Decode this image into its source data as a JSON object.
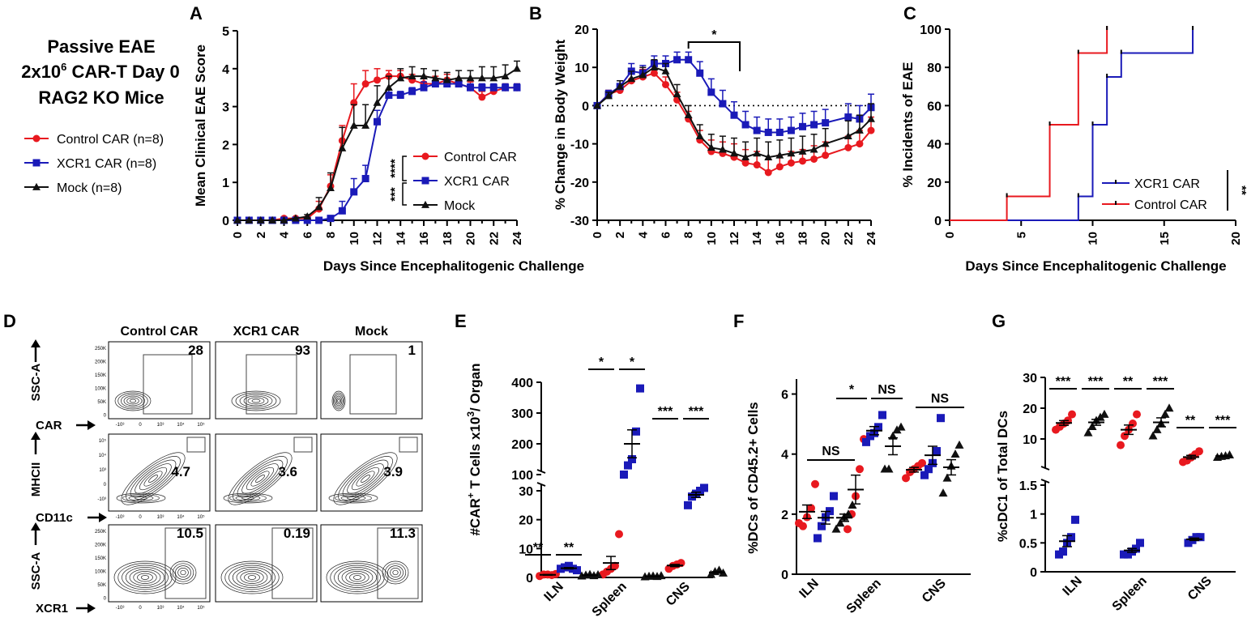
{
  "colors": {
    "control": "#e8191f",
    "xcr1": "#1a1ab8",
    "mock": "#111111"
  },
  "side_legend": {
    "title_line1": "Passive EAE",
    "title_line2_pre": "2x10",
    "title_line2_sup": "6",
    "title_line2_post": " CAR-T Day 0",
    "title_line3": "RAG2 KO Mice",
    "items": [
      "Control CAR (n=8)",
      "XCR1 CAR (n=8)",
      "Mock (n=8)"
    ]
  },
  "shared_xlabel": "Days Since Encephalitogenic Challenge",
  "chart_data": [
    {
      "panel": "A",
      "type": "line",
      "ylabel": "Mean Clinical EAE Score",
      "xlabel": "Days Since Encephalitogenic Challenge",
      "xlim": [
        0,
        24
      ],
      "ylim": [
        0,
        5
      ],
      "xticks": [
        0,
        2,
        4,
        6,
        8,
        10,
        12,
        14,
        16,
        18,
        20,
        22,
        24
      ],
      "yticks": [
        0,
        1,
        2,
        3,
        4,
        5
      ],
      "legend": [
        "Control CAR",
        "XCR1 CAR",
        "Mock"
      ],
      "significance": [
        "****",
        "***"
      ],
      "series": [
        {
          "name": "Control CAR",
          "x": [
            0,
            1,
            2,
            3,
            4,
            5,
            6,
            7,
            8,
            9,
            10,
            11,
            12,
            13,
            14,
            15,
            16,
            17,
            18,
            19,
            20,
            21,
            22,
            23,
            24
          ],
          "y": [
            0,
            0,
            0,
            0,
            0.05,
            0.05,
            0.05,
            0.3,
            0.9,
            2.1,
            3.1,
            3.6,
            3.7,
            3.8,
            3.8,
            3.7,
            3.6,
            3.6,
            3.7,
            3.6,
            3.5,
            3.25,
            3.4,
            3.5,
            3.5
          ],
          "err": [
            0,
            0,
            0,
            0,
            0,
            0,
            0,
            0.2,
            0.3,
            0.4,
            0.5,
            0.35,
            0.3,
            0.15,
            0.15,
            0.15,
            0.2,
            0.2,
            0.15,
            0.15,
            0.15,
            0.15,
            0.1,
            0.1,
            0.1
          ]
        },
        {
          "name": "XCR1 CAR",
          "x": [
            0,
            1,
            2,
            3,
            4,
            5,
            6,
            7,
            8,
            9,
            10,
            11,
            12,
            13,
            14,
            15,
            16,
            17,
            18,
            19,
            20,
            21,
            22,
            23,
            24
          ],
          "y": [
            0,
            0,
            0,
            0,
            0,
            0,
            0,
            0,
            0.05,
            0.25,
            0.75,
            1.1,
            2.6,
            3.3,
            3.3,
            3.4,
            3.5,
            3.6,
            3.6,
            3.6,
            3.5,
            3.5,
            3.5,
            3.5,
            3.5
          ],
          "err": [
            0,
            0,
            0,
            0,
            0,
            0,
            0,
            0,
            0.05,
            0.25,
            0.35,
            0.35,
            0.3,
            0.15,
            0.1,
            0.1,
            0.15,
            0.1,
            0.1,
            0.1,
            0.1,
            0.1,
            0.1,
            0.1,
            0.1
          ]
        },
        {
          "name": "Mock",
          "x": [
            0,
            1,
            2,
            3,
            4,
            5,
            6,
            7,
            8,
            9,
            10,
            11,
            12,
            13,
            14,
            15,
            16,
            17,
            18,
            19,
            20,
            21,
            22,
            23,
            24
          ],
          "y": [
            0,
            0,
            0,
            0,
            0,
            0.05,
            0.1,
            0.35,
            0.85,
            1.9,
            2.5,
            2.5,
            3.1,
            3.5,
            3.75,
            3.8,
            3.8,
            3.75,
            3.7,
            3.75,
            3.75,
            3.75,
            3.75,
            3.8,
            4.0
          ],
          "err": [
            0,
            0,
            0,
            0,
            0,
            0,
            0.05,
            0.25,
            0.4,
            0.55,
            0.55,
            0.55,
            0.45,
            0.3,
            0.25,
            0.25,
            0.2,
            0.2,
            0.2,
            0.2,
            0.2,
            0.3,
            0.3,
            0.3,
            0.2
          ]
        }
      ]
    },
    {
      "panel": "B",
      "type": "line",
      "ylabel": "% Change in Body Weight",
      "xlabel": "",
      "xlim": [
        0,
        24
      ],
      "ylim": [
        -30,
        20
      ],
      "xticks": [
        0,
        2,
        4,
        6,
        8,
        10,
        12,
        14,
        16,
        18,
        20,
        22,
        24
      ],
      "yticks": [
        -30,
        -20,
        -10,
        0,
        10,
        20
      ],
      "significance": [
        "*"
      ],
      "sig_x": [
        8,
        12.5
      ],
      "series": [
        {
          "name": "Control CAR",
          "x": [
            0,
            1,
            2,
            3,
            4,
            5,
            6,
            7,
            8,
            9,
            10,
            11,
            12,
            13,
            14,
            15,
            16,
            17,
            18,
            19,
            20,
            22,
            23,
            24
          ],
          "y": [
            0,
            3,
            4,
            6.5,
            7.5,
            8.5,
            5.5,
            1.5,
            -3.5,
            -9,
            -12,
            -12.5,
            -13.5,
            -15,
            -15.5,
            -17.5,
            -16,
            -15,
            -14.5,
            -14,
            -13,
            -11,
            -10,
            -6.5
          ],
          "err": [
            0,
            1,
            1.5,
            2,
            2,
            2,
            2,
            2,
            2,
            2.5,
            3,
            3,
            3.5,
            3.5,
            3.5,
            3.5,
            3,
            3,
            3,
            3.5,
            3.5,
            3,
            3.5,
            3.5
          ]
        },
        {
          "name": "XCR1 CAR",
          "x": [
            0,
            1,
            2,
            3,
            4,
            5,
            6,
            7,
            8,
            9,
            10,
            11,
            12,
            13,
            14,
            15,
            16,
            17,
            18,
            19,
            20,
            22,
            23,
            24
          ],
          "y": [
            0,
            3,
            5,
            9,
            8.5,
            11,
            11,
            12,
            12,
            8.5,
            3.5,
            0.5,
            -2.5,
            -5,
            -6.5,
            -7,
            -7,
            -6.5,
            -5.5,
            -5,
            -4.5,
            -3,
            -3.5,
            -0.5
          ],
          "err": [
            0,
            1,
            1.5,
            2,
            2,
            2,
            2,
            2,
            2,
            3,
            3.5,
            3.5,
            3.5,
            3.5,
            3.5,
            3.5,
            3.5,
            3.5,
            3.5,
            3.5,
            3.5,
            3.5,
            3.5,
            3.5
          ]
        },
        {
          "name": "Mock",
          "x": [
            0,
            1,
            2,
            3,
            4,
            5,
            6,
            7,
            8,
            9,
            10,
            11,
            12,
            13,
            14,
            15,
            16,
            17,
            18,
            19,
            20,
            22,
            23,
            24
          ],
          "y": [
            0,
            2.5,
            5,
            7,
            8,
            10,
            9,
            3,
            -2.5,
            -8,
            -11,
            -11.5,
            -12.5,
            -13.5,
            -12.5,
            -13.5,
            -13,
            -12.5,
            -12,
            -11.5,
            -10,
            -8,
            -6.5,
            -3.5
          ],
          "err": [
            0,
            1,
            1.5,
            2,
            2,
            2,
            2,
            2.5,
            2.5,
            3,
            3.5,
            3.5,
            4,
            4,
            4,
            4,
            4,
            4,
            4,
            4,
            4,
            4,
            4,
            4
          ]
        }
      ]
    },
    {
      "panel": "C",
      "type": "line",
      "ylabel": "% Incidents of EAE",
      "xlabel": "Days Since Encephalitogenic Challenge",
      "xlim": [
        0,
        20
      ],
      "ylim": [
        0,
        100
      ],
      "xticks": [
        0,
        5,
        10,
        15,
        20
      ],
      "yticks": [
        0,
        20,
        40,
        60,
        80,
        100
      ],
      "legend": [
        "XCR1 CAR",
        "Control CAR"
      ],
      "significance": [
        "**"
      ],
      "series": [
        {
          "name": "XCR1 CAR",
          "step_x": [
            0,
            9,
            10,
            11,
            12,
            17
          ],
          "step_y": [
            0,
            12.5,
            50,
            75,
            87.5,
            100
          ]
        },
        {
          "name": "Control CAR",
          "step_x": [
            0,
            4,
            7,
            9,
            11
          ],
          "step_y": [
            0,
            12.5,
            50,
            87.5,
            100
          ]
        }
      ]
    },
    {
      "panel": "E",
      "type": "scatter",
      "ylabel_pre": "#CAR",
      "ylabel_sup": "+",
      "ylabel_mid": " T  Cells x10",
      "ylabel_sup2": "3",
      "ylabel_post": "/ Organ",
      "categories": [
        "ILN",
        "Spleen",
        "CNS"
      ],
      "upper_yticks": [
        100,
        200,
        300,
        400
      ],
      "lower_yticks": [
        0,
        10,
        20,
        30
      ],
      "significance": [
        [
          "**",
          "**"
        ],
        [
          "*",
          "*"
        ],
        [
          "***",
          "***"
        ]
      ],
      "series": [
        {
          "name": "Control CAR",
          "values": [
            [
              0.5,
              1,
              1,
              0.8,
              1.2
            ],
            [
              1,
              2,
              3,
              4,
              15
            ],
            [
              3,
              4,
              4.5,
              5
            ]
          ]
        },
        {
          "name": "XCR1 CAR",
          "values": [
            [
              3,
              3.5,
              4,
              3,
              2.5
            ],
            [
              100,
              130,
              150,
              240,
              380
            ],
            [
              25,
              28,
              29,
              30,
              31
            ]
          ]
        },
        {
          "name": "Mock",
          "values": [
            [
              0.5,
              0.8,
              1,
              0.6,
              0.9
            ],
            [
              0.2,
              0.4,
              0.5,
              0.3,
              0.6
            ],
            [
              1,
              2,
              2.5,
              1.5
            ]
          ]
        }
      ]
    },
    {
      "panel": "F",
      "type": "scatter",
      "ylabel": "%DCs of CD45.2+ Cells",
      "categories": [
        "ILN",
        "Spleen",
        "CNS"
      ],
      "ylim": [
        0,
        6.5
      ],
      "yticks": [
        0,
        2,
        4,
        6
      ],
      "significance": [
        "NS",
        "*",
        "NS",
        "NS"
      ],
      "series": [
        {
          "name": "Control CAR",
          "values": [
            [
              1.7,
              1.6,
              1.9,
              2.2,
              3.0
            ],
            [
              1.5,
              2.0,
              2.6,
              3.5,
              4.5
            ],
            [
              3.2,
              3.4,
              3.5,
              3.6,
              3.7
            ]
          ]
        },
        {
          "name": "XCR1 CAR",
          "values": [
            [
              1.2,
              1.6,
              1.9,
              2.1,
              2.6
            ],
            [
              4.4,
              4.6,
              4.7,
              4.9,
              5.3
            ],
            [
              3.3,
              3.5,
              3.7,
              4.1,
              5.2
            ]
          ]
        },
        {
          "name": "Mock",
          "values": [
            [
              1.5,
              1.7,
              1.9,
              2.0,
              2.3
            ],
            [
              3.5,
              3.5,
              4.6,
              4.8,
              4.9
            ],
            [
              2.7,
              3.2,
              3.6,
              4.0,
              4.3
            ]
          ]
        }
      ]
    },
    {
      "panel": "G",
      "type": "scatter",
      "ylabel": "%cDC1 of Total  DCs",
      "categories": [
        "ILN",
        "Spleen",
        "CNS"
      ],
      "upper_yticks": [
        10,
        20,
        30
      ],
      "lower_yticks": [
        0.0,
        0.5,
        1.0,
        1.5
      ],
      "significance": [
        [
          "***",
          "***"
        ],
        [
          "**",
          "***"
        ],
        [
          "**",
          "***"
        ]
      ],
      "series": [
        {
          "name": "Control CAR",
          "values": [
            [
              13,
              14,
              15,
              16,
              18
            ],
            [
              8,
              11,
              13,
              15,
              18
            ],
            [
              2.5,
              3,
              4,
              5,
              6
            ]
          ]
        },
        {
          "name": "XCR1 CAR",
          "values": [
            [
              0.3,
              0.35,
              0.5,
              0.6,
              0.9
            ],
            [
              0.3,
              0.3,
              0.35,
              0.4,
              0.5
            ],
            [
              0.5,
              0.55,
              0.6,
              0.6
            ]
          ]
        },
        {
          "name": "Mock",
          "values": [
            [
              12,
              14,
              16,
              17,
              18
            ],
            [
              11,
              13,
              15,
              18,
              20
            ],
            [
              4,
              4.3,
              4.5,
              4.8
            ]
          ]
        }
      ]
    }
  ],
  "panel_labels": [
    "A",
    "B",
    "C",
    "D",
    "E",
    "F",
    "G"
  ],
  "flow": {
    "col_titles": [
      "Control CAR",
      "XCR1 CAR",
      "Mock"
    ],
    "row1": {
      "y_axis": "SSC-A",
      "x_axis": "CAR",
      "values": [
        "28",
        "93",
        "1"
      ]
    },
    "row2": {
      "y_axis": "MHCII",
      "x_axis": "CD11c",
      "values": [
        "4.7",
        "3.6",
        "3.9"
      ]
    },
    "row3": {
      "y_axis": "SSC-A",
      "x_axis": "XCR1",
      "values": [
        "10.5",
        "0.19",
        "11.3"
      ]
    },
    "tick_k": [
      "250K",
      "200K",
      "150K",
      "100K",
      "50K",
      "0"
    ],
    "tick_log_x": [
      "-10³",
      "0",
      "10³",
      "10⁴",
      "10⁵"
    ],
    "tick_log_y": [
      "10⁵",
      "10⁴",
      "10³",
      "0",
      "-10³"
    ]
  }
}
